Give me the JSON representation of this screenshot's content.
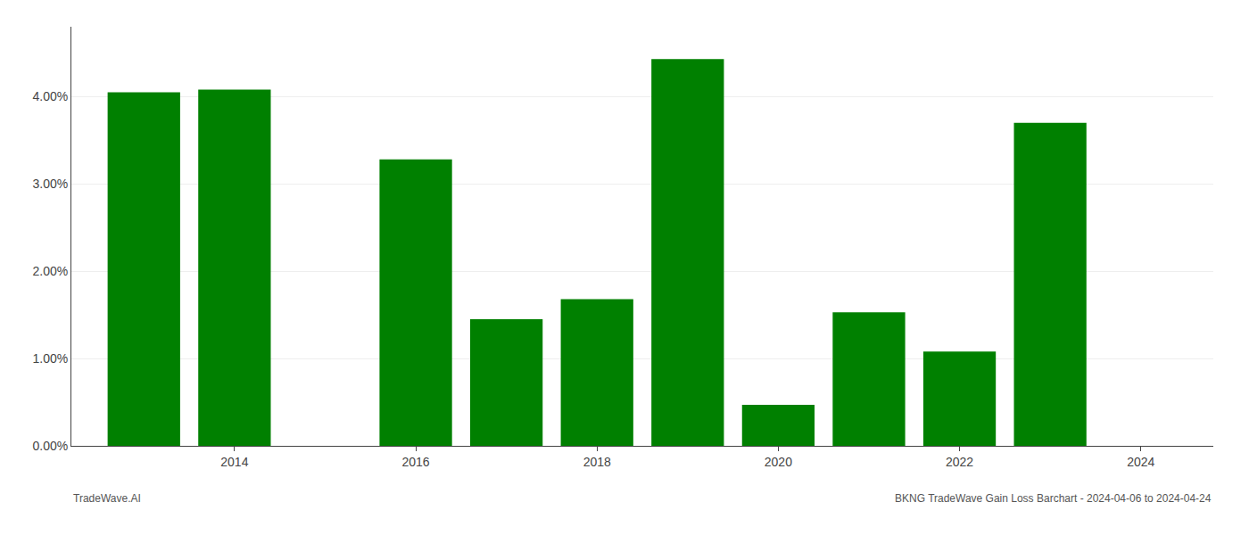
{
  "chart_data": {
    "type": "bar",
    "x": [
      2013,
      2014,
      2016,
      2017,
      2018,
      2019,
      2020,
      2021,
      2022,
      2023
    ],
    "values": [
      0.0405,
      0.0408,
      0.0328,
      0.0145,
      0.0168,
      0.0443,
      0.0047,
      0.0153,
      0.0108,
      0.037
    ],
    "color": "#008000",
    "xlim": [
      2012.2,
      2024.8
    ],
    "xticks": [
      2014,
      2016,
      2018,
      2020,
      2022,
      2024
    ],
    "ylim": [
      0,
      0.048
    ],
    "yticks": [
      {
        "value": 0.0,
        "label": "0.00%"
      },
      {
        "value": 0.01,
        "label": "1.00%"
      },
      {
        "value": 0.02,
        "label": "2.00%"
      },
      {
        "value": 0.03,
        "label": "3.00%"
      },
      {
        "value": 0.04,
        "label": "4.00%"
      }
    ],
    "grid": true,
    "annotations": [
      "TradeWave.AI",
      "BKNG TradeWave Gain Loss Barchart - 2024-04-06 to 2024-04-24"
    ]
  }
}
